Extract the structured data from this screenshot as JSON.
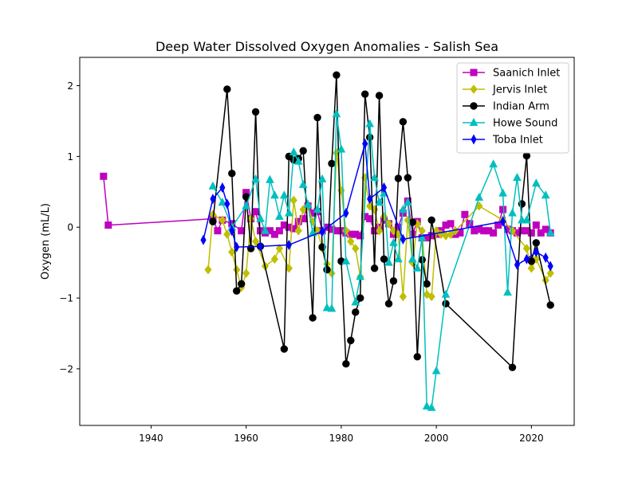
{
  "chart_data": {
    "type": "line",
    "title": "Deep Water Dissolved Oxygen Anomalies - Salish Sea",
    "xlabel": "",
    "ylabel": "Oxygen (mL/L)",
    "xlim": [
      1925,
      2029
    ],
    "ylim": [
      -2.8,
      2.4
    ],
    "xticks": [
      1940,
      1960,
      1980,
      2000,
      2020
    ],
    "yticks": [
      -2,
      -1,
      0,
      1,
      2
    ],
    "ytick_labels": [
      "−2",
      "−1",
      "0",
      "1",
      "2"
    ],
    "legend_position": "top-right",
    "series": [
      {
        "name": "Saanich Inlet",
        "color": "#bf00bf",
        "marker": "square",
        "points": [
          [
            1930,
            0.72
          ],
          [
            1931,
            0.03
          ],
          [
            1953,
            0.12
          ],
          [
            1954,
            -0.05
          ],
          [
            1955,
            0.1
          ],
          [
            1957,
            0.05
          ],
          [
            1959,
            -0.05
          ],
          [
            1960,
            0.49
          ],
          [
            1961,
            0.12
          ],
          [
            1962,
            0.22
          ],
          [
            1963,
            -0.05
          ],
          [
            1964,
            -0.08
          ],
          [
            1965,
            -0.05
          ],
          [
            1966,
            -0.1
          ],
          [
            1967,
            -0.05
          ],
          [
            1968,
            0.03
          ],
          [
            1969,
            0.0
          ],
          [
            1970,
            -0.02
          ],
          [
            1971,
            0.08
          ],
          [
            1972,
            0.12
          ],
          [
            1973,
            0.3
          ],
          [
            1974,
            0.2
          ],
          [
            1975,
            0.22
          ],
          [
            1976,
            -0.05
          ],
          [
            1977,
            0.0
          ],
          [
            1978,
            -0.03
          ],
          [
            1979,
            -0.05
          ],
          [
            1980,
            -0.05
          ],
          [
            1981,
            -0.08
          ],
          [
            1982,
            -0.1
          ],
          [
            1983,
            -0.1
          ],
          [
            1984,
            -0.12
          ],
          [
            1985,
            0.15
          ],
          [
            1986,
            0.12
          ],
          [
            1987,
            -0.05
          ],
          [
            1988,
            0.0
          ],
          [
            1989,
            0.1
          ],
          [
            1990,
            0.05
          ],
          [
            1991,
            -0.1
          ],
          [
            1992,
            0.0
          ],
          [
            1993,
            0.2
          ],
          [
            1994,
            0.37
          ],
          [
            1995,
            -0.1
          ],
          [
            1996,
            0.08
          ],
          [
            1997,
            -0.15
          ],
          [
            1998,
            -0.15
          ],
          [
            1999,
            -0.12
          ],
          [
            2000,
            -0.1
          ],
          [
            2001,
            -0.05
          ],
          [
            2002,
            0.03
          ],
          [
            2003,
            0.05
          ],
          [
            2004,
            -0.1
          ],
          [
            2005,
            -0.08
          ],
          [
            2006,
            0.18
          ],
          [
            2007,
            0.05
          ],
          [
            2008,
            -0.05
          ],
          [
            2009,
            -0.03
          ],
          [
            2010,
            -0.05
          ],
          [
            2011,
            -0.05
          ],
          [
            2012,
            -0.08
          ],
          [
            2013,
            0.03
          ],
          [
            2014,
            0.25
          ],
          [
            2015,
            -0.03
          ],
          [
            2016,
            -0.05
          ],
          [
            2017,
            -0.08
          ],
          [
            2018,
            -0.05
          ],
          [
            2019,
            -0.05
          ],
          [
            2020,
            -0.08
          ],
          [
            2021,
            0.03
          ],
          [
            2022,
            -0.08
          ],
          [
            2023,
            -0.03
          ],
          [
            2024,
            -0.08
          ]
        ]
      },
      {
        "name": "Jervis Inlet",
        "color": "#bfbf00",
        "marker": "diamond",
        "points": [
          [
            1952,
            -0.6
          ],
          [
            1953,
            0.18
          ],
          [
            1955,
            0.1
          ],
          [
            1956,
            -0.1
          ],
          [
            1957,
            -0.35
          ],
          [
            1958,
            -0.6
          ],
          [
            1959,
            -0.85
          ],
          [
            1960,
            -0.65
          ],
          [
            1961,
            0.12
          ],
          [
            1962,
            -0.2
          ],
          [
            1964,
            -0.55
          ],
          [
            1966,
            -0.45
          ],
          [
            1967,
            -0.3
          ],
          [
            1969,
            -0.58
          ],
          [
            1970,
            0.38
          ],
          [
            1971,
            -0.05
          ],
          [
            1972,
            0.25
          ],
          [
            1973,
            0.3
          ],
          [
            1974,
            0.08
          ],
          [
            1975,
            -0.05
          ],
          [
            1976,
            -0.3
          ],
          [
            1977,
            -0.52
          ],
          [
            1978,
            -0.65
          ],
          [
            1979,
            1.05
          ],
          [
            1980,
            0.52
          ],
          [
            1981,
            -0.05
          ],
          [
            1982,
            -0.2
          ],
          [
            1983,
            -0.3
          ],
          [
            1984,
            -0.7
          ],
          [
            1985,
            0.7
          ],
          [
            1986,
            0.3
          ],
          [
            1987,
            0.25
          ],
          [
            1988,
            -0.05
          ],
          [
            1989,
            0.15
          ],
          [
            1990,
            0.05
          ],
          [
            1991,
            -0.05
          ],
          [
            1992,
            -0.1
          ],
          [
            1993,
            -0.98
          ],
          [
            1994,
            0.1
          ],
          [
            1995,
            -0.5
          ],
          [
            1996,
            0.05
          ],
          [
            1997,
            -0.05
          ],
          [
            1998,
            -0.95
          ],
          [
            1999,
            -0.98
          ],
          [
            2000,
            -0.05
          ],
          [
            2001,
            -0.1
          ],
          [
            2002,
            -0.12
          ],
          [
            2003,
            -0.1
          ],
          [
            2004,
            -0.05
          ],
          [
            2009,
            0.3
          ],
          [
            2014,
            0.1
          ],
          [
            2016,
            -0.05
          ],
          [
            2019,
            -0.3
          ],
          [
            2020,
            -0.58
          ],
          [
            2021,
            -0.45
          ],
          [
            2023,
            -0.75
          ],
          [
            2024,
            -0.65
          ]
        ]
      },
      {
        "name": "Indian Arm",
        "color": "#000000",
        "marker": "circle",
        "points": [
          [
            1953,
            0.08
          ],
          [
            1956,
            1.95
          ],
          [
            1957,
            0.76
          ],
          [
            1958,
            -0.9
          ],
          [
            1959,
            -0.8
          ],
          [
            1960,
            0.43
          ],
          [
            1961,
            -0.3
          ],
          [
            1962,
            1.63
          ],
          [
            1963,
            -0.27
          ],
          [
            1968,
            -1.72
          ],
          [
            1969,
            1.0
          ],
          [
            1970,
            0.95
          ],
          [
            1971,
            0.97
          ],
          [
            1972,
            1.08
          ],
          [
            1974,
            -1.28
          ],
          [
            1975,
            1.55
          ],
          [
            1976,
            -0.28
          ],
          [
            1977,
            -0.6
          ],
          [
            1978,
            0.9
          ],
          [
            1979,
            2.15
          ],
          [
            1980,
            -0.48
          ],
          [
            1981,
            -1.93
          ],
          [
            1982,
            -1.6
          ],
          [
            1983,
            -1.2
          ],
          [
            1984,
            -1.0
          ],
          [
            1985,
            1.88
          ],
          [
            1986,
            1.27
          ],
          [
            1987,
            -0.58
          ],
          [
            1988,
            1.86
          ],
          [
            1989,
            -0.45
          ],
          [
            1990,
            -1.08
          ],
          [
            1991,
            -0.76
          ],
          [
            1992,
            0.69
          ],
          [
            1993,
            1.49
          ],
          [
            1994,
            0.7
          ],
          [
            1995,
            0.07
          ],
          [
            1996,
            -1.83
          ],
          [
            1997,
            -0.46
          ],
          [
            1998,
            -0.8
          ],
          [
            1999,
            0.1
          ],
          [
            2002,
            -1.08
          ],
          [
            2016,
            -1.98
          ],
          [
            2018,
            0.33
          ],
          [
            2019,
            1.01
          ],
          [
            2020,
            -0.48
          ],
          [
            2021,
            -0.22
          ],
          [
            2024,
            -1.1
          ]
        ]
      },
      {
        "name": "Howe Sound",
        "color": "#00bfbf",
        "marker": "triangle",
        "points": [
          [
            1953,
            0.58
          ],
          [
            1955,
            0.35
          ],
          [
            1957,
            0.0
          ],
          [
            1960,
            0.3
          ],
          [
            1962,
            0.68
          ],
          [
            1963,
            0.12
          ],
          [
            1964,
            -0.05
          ],
          [
            1965,
            0.67
          ],
          [
            1966,
            0.45
          ],
          [
            1967,
            0.15
          ],
          [
            1968,
            0.45
          ],
          [
            1969,
            0.2
          ],
          [
            1970,
            1.06
          ],
          [
            1971,
            0.93
          ],
          [
            1972,
            0.6
          ],
          [
            1973,
            0.32
          ],
          [
            1974,
            -0.08
          ],
          [
            1975,
            0.25
          ],
          [
            1976,
            0.68
          ],
          [
            1977,
            -1.14
          ],
          [
            1978,
            -1.15
          ],
          [
            1979,
            1.6
          ],
          [
            1980,
            1.1
          ],
          [
            1981,
            -0.48
          ],
          [
            1983,
            -1.06
          ],
          [
            1984,
            -0.7
          ],
          [
            1986,
            1.46
          ],
          [
            1987,
            0.7
          ],
          [
            1988,
            0.35
          ],
          [
            1989,
            0.48
          ],
          [
            1990,
            -0.5
          ],
          [
            1991,
            -0.22
          ],
          [
            1992,
            -0.45
          ],
          [
            1993,
            0.25
          ],
          [
            1994,
            0.35
          ],
          [
            1995,
            -0.45
          ],
          [
            1996,
            -0.58
          ],
          [
            1997,
            -0.15
          ],
          [
            1998,
            -2.53
          ],
          [
            1999,
            -2.55
          ],
          [
            2000,
            -2.03
          ],
          [
            2002,
            -0.95
          ],
          [
            2009,
            0.42
          ],
          [
            2012,
            0.89
          ],
          [
            2014,
            0.48
          ],
          [
            2015,
            -0.92
          ],
          [
            2016,
            0.2
          ],
          [
            2017,
            0.7
          ],
          [
            2018,
            0.1
          ],
          [
            2019,
            0.1
          ],
          [
            2021,
            0.62
          ],
          [
            2023,
            0.45
          ],
          [
            2024,
            -0.08
          ]
        ]
      },
      {
        "name": "Toba Inlet",
        "color": "#0000ff",
        "marker": "thin_diamond",
        "points": [
          [
            1951,
            -0.18
          ],
          [
            1953,
            0.4
          ],
          [
            1955,
            0.56
          ],
          [
            1956,
            0.33
          ],
          [
            1957,
            -0.05
          ],
          [
            1958,
            -0.28
          ],
          [
            1963,
            -0.27
          ],
          [
            1969,
            -0.25
          ],
          [
            1976,
            -0.06
          ],
          [
            1981,
            0.2
          ],
          [
            1985,
            1.18
          ],
          [
            1986,
            0.4
          ],
          [
            1989,
            0.56
          ],
          [
            1993,
            -0.17
          ],
          [
            2014,
            0.08
          ],
          [
            2017,
            -0.53
          ],
          [
            2019,
            -0.45
          ],
          [
            2021,
            -0.35
          ],
          [
            2023,
            -0.43
          ],
          [
            2024,
            -0.55
          ]
        ]
      }
    ]
  }
}
